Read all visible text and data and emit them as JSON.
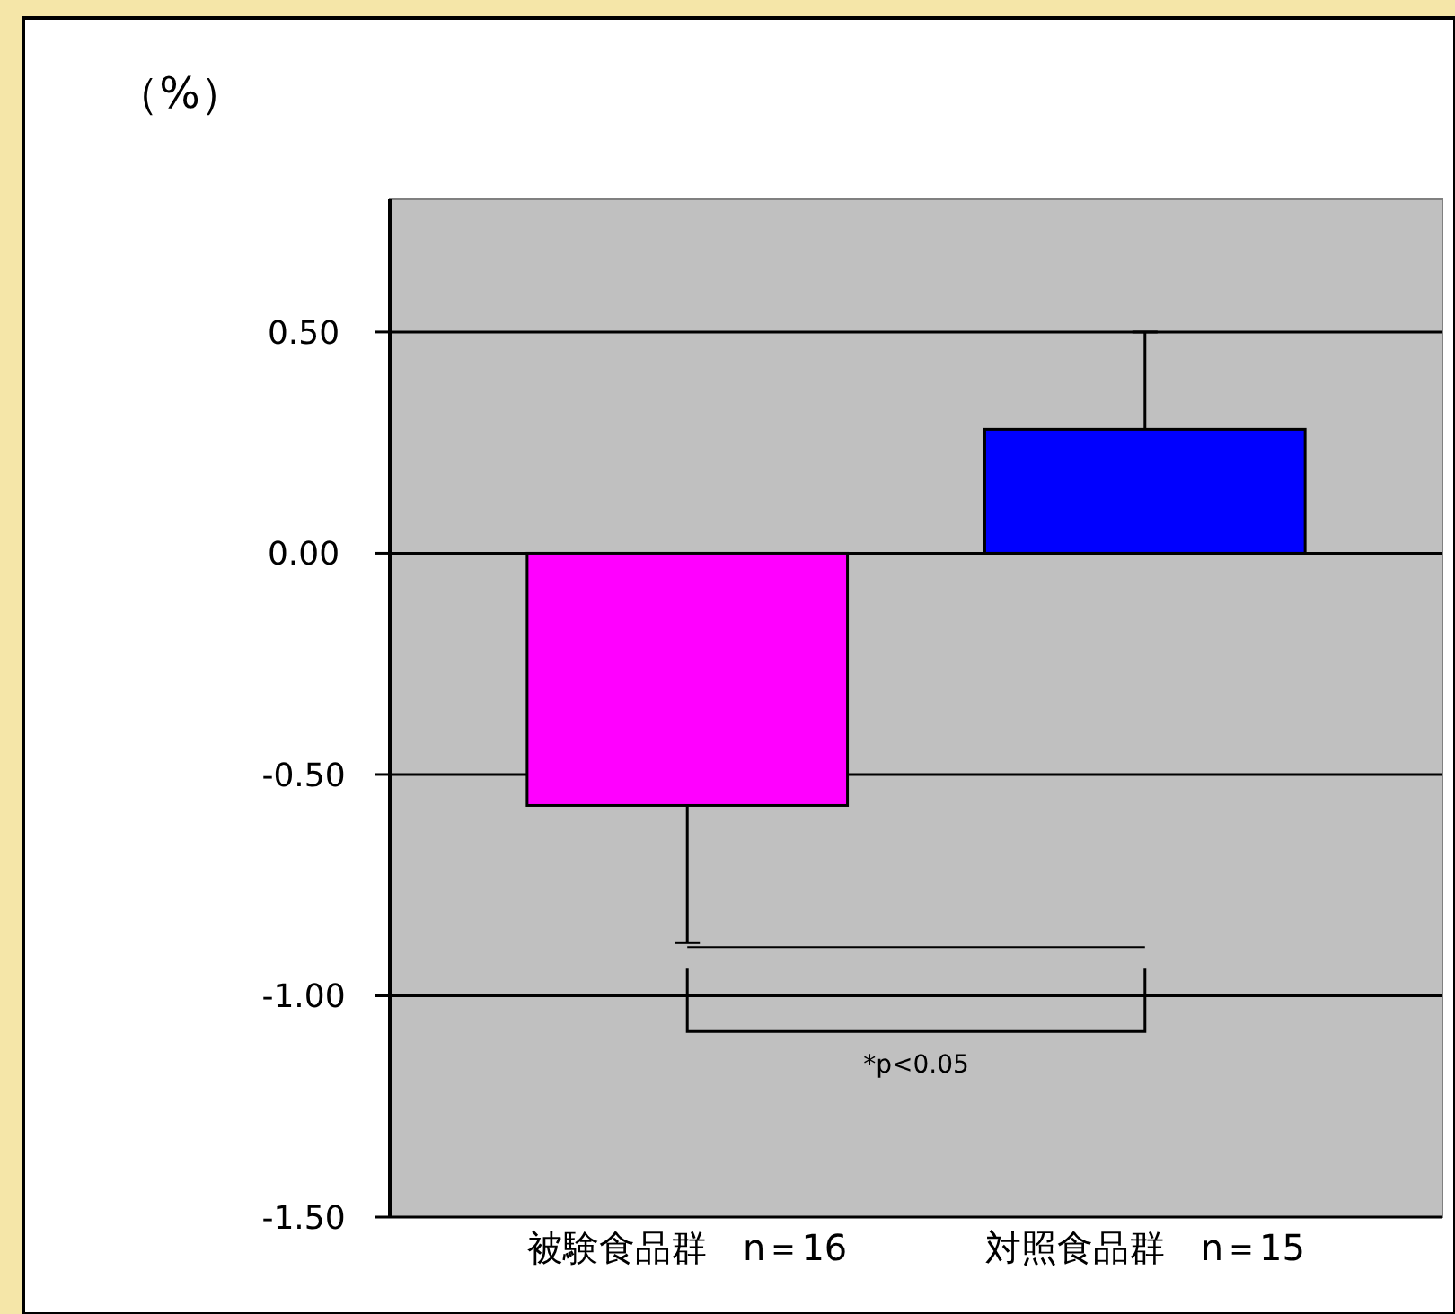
{
  "chart_data": {
    "type": "bar",
    "ylabel": "（%）",
    "categories": [
      "被験食品群　n＝16",
      "対照食品群　n＝15"
    ],
    "values": [
      -0.57,
      0.28
    ],
    "colors": [
      "#ff00ff",
      "#0000ff"
    ],
    "errors": [
      [
        -0.88,
        -0.57
      ],
      [
        0.28,
        0.5
      ]
    ],
    "ylim": [
      -1.5,
      0.8
    ],
    "yticks": [
      {
        "value": -1.5,
        "label": "-1.50"
      },
      {
        "value": -1,
        "label": "-1.00"
      },
      {
        "value": -0.5,
        "label": "-0.50"
      },
      {
        "value": 0,
        "label": "0.00"
      },
      {
        "value": 0.5,
        "label": "0.50"
      }
    ],
    "grid": "y",
    "annotations": [
      "*p<0.05"
    ]
  }
}
